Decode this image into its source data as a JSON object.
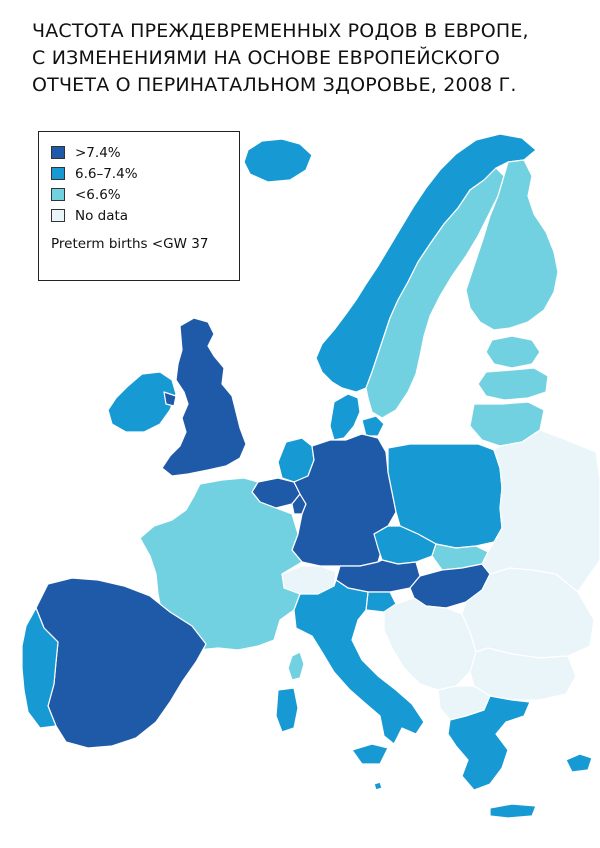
{
  "title_lines": [
    "ЧАСТОТА ПРЕЖДЕВРЕМЕННЫХ РОДОВ В ЕВРОПЕ,",
    "С ИЗМЕНЕНИЯМИ НА ОСНОВЕ ЕВРОПЕЙСКОГО",
    "ОТЧЕТА О ПЕРИНАТАЛЬНОМ ЗДОРОВЬЕ, 2008 Г."
  ],
  "legend": {
    "items": [
      {
        "label": ">7.4%",
        "color": "#1f5aa8"
      },
      {
        "label": "6.6–7.4%",
        "color": "#179ad4"
      },
      {
        "label": "<6.6%",
        "color": "#72d1e0"
      },
      {
        "label": "No data",
        "color": "#eaf5fa"
      }
    ],
    "note": "Preterm births <GW 37"
  },
  "colors": {
    "high": "#1f5aa8",
    "mid": "#179ad4",
    "low": "#72d1e0",
    "nodata": "#eaf5fa",
    "border": "#ffffff"
  },
  "chart_data": {
    "type": "choropleth",
    "categories": [
      ">7.4%",
      "6.6–7.4%",
      "<6.6%",
      "No data"
    ],
    "regions": [
      {
        "name": "United Kingdom",
        "class": ">7.4%"
      },
      {
        "name": "Ireland",
        "class": "6.6–7.4%"
      },
      {
        "name": "Iceland",
        "class": "6.6–7.4%"
      },
      {
        "name": "Norway",
        "class": "6.6–7.4%"
      },
      {
        "name": "Sweden",
        "class": "<6.6%"
      },
      {
        "name": "Finland",
        "class": "<6.6%"
      },
      {
        "name": "Estonia",
        "class": "<6.6%"
      },
      {
        "name": "Latvia",
        "class": "<6.6%"
      },
      {
        "name": "Lithuania",
        "class": "<6.6%"
      },
      {
        "name": "Denmark",
        "class": "6.6–7.4%"
      },
      {
        "name": "Netherlands",
        "class": "6.6–7.4%"
      },
      {
        "name": "Belgium",
        "class": ">7.4%"
      },
      {
        "name": "Luxembourg",
        "class": ">7.4%"
      },
      {
        "name": "France",
        "class": "<6.6%"
      },
      {
        "name": "Germany",
        "class": ">7.4%"
      },
      {
        "name": "Poland",
        "class": "6.6–7.4%"
      },
      {
        "name": "Czech Republic",
        "class": "6.6–7.4%"
      },
      {
        "name": "Slovakia",
        "class": "<6.6%"
      },
      {
        "name": "Austria",
        "class": ">7.4%"
      },
      {
        "name": "Hungary",
        "class": ">7.4%"
      },
      {
        "name": "Switzerland",
        "class": "No data"
      },
      {
        "name": "Slovenia",
        "class": "6.6–7.4%"
      },
      {
        "name": "Italy",
        "class": "6.6–7.4%"
      },
      {
        "name": "Spain",
        "class": ">7.4%"
      },
      {
        "name": "Portugal",
        "class": "6.6–7.4%"
      },
      {
        "name": "Corsica",
        "class": "<6.6%"
      },
      {
        "name": "Greece",
        "class": "6.6–7.4%"
      },
      {
        "name": "Cyprus",
        "class": "6.6–7.4%"
      },
      {
        "name": "Malta",
        "class": "6.6–7.4%"
      },
      {
        "name": "Croatia",
        "class": "No data"
      },
      {
        "name": "Serbia",
        "class": "No data"
      },
      {
        "name": "Romania",
        "class": "No data"
      },
      {
        "name": "Bulgaria",
        "class": "No data"
      },
      {
        "name": "Bosnia and Herzegovina",
        "class": "No data"
      },
      {
        "name": "Ukraine",
        "class": "No data"
      },
      {
        "name": "Belarus",
        "class": "No data"
      },
      {
        "name": "Moldova",
        "class": "No data"
      },
      {
        "name": "Albania",
        "class": "No data"
      },
      {
        "name": "North Macedonia",
        "class": "No data"
      },
      {
        "name": "Turkey (European part)",
        "class": "No data"
      }
    ]
  }
}
